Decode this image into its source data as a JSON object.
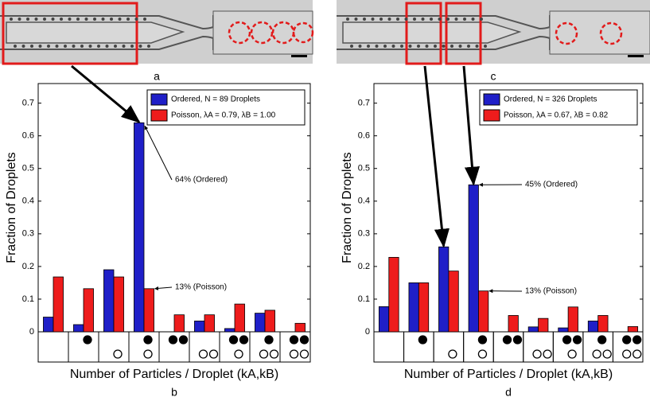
{
  "chart_data": [
    {
      "type": "bar",
      "image_label": "a",
      "panel_label": "b",
      "y_label": "Fraction of Droplets",
      "x_label": "Number of Particles / Droplet (kA,kB)",
      "categories": [
        null,
        null,
        null,
        null,
        null,
        null,
        null,
        null,
        null
      ],
      "series": [
        {
          "name": "Ordered, N = 89 Droplets",
          "color": "#1f1fc8",
          "values": [
            0.045,
            0.022,
            0.19,
            0.64,
            0,
            0.033,
            0.01,
            0.057,
            0
          ]
        },
        {
          "name": "Poisson, λA = 0.79, λB = 1.00",
          "color": "#ee1c1c",
          "values": [
            0.168,
            0.132,
            0.168,
            0.132,
            0.052,
            0.052,
            0.085,
            0.066,
            0.026
          ]
        }
      ],
      "annotations": [
        "64% (Ordered)",
        "13% (Poisson)"
      ],
      "ylim": [
        0,
        0.76
      ],
      "yticks": [
        0,
        0.1,
        0.2,
        0.3,
        0.4,
        0.5,
        0.6,
        0.7
      ],
      "legend": "upper right"
    },
    {
      "type": "bar",
      "image_label": "c",
      "panel_label": "d",
      "y_label": "Fraction of Droplets",
      "x_label": "Number of Particles / Droplet (kA,kB)",
      "categories": [
        null,
        null,
        null,
        null,
        null,
        null,
        null,
        null,
        null
      ],
      "series": [
        {
          "name": "Ordered, N = 326 Droplets",
          "color": "#1f1fc8",
          "values": [
            0.077,
            0.15,
            0.26,
            0.45,
            0,
            0.015,
            0.012,
            0.033,
            0
          ]
        },
        {
          "name": "Poisson, λA = 0.67, λB = 0.82",
          "color": "#ee1c1c",
          "values": [
            0.228,
            0.15,
            0.186,
            0.125,
            0.05,
            0.041,
            0.076,
            0.05,
            0.016
          ]
        }
      ],
      "annotations": [
        "45% (Ordered)",
        "13% (Poisson)"
      ],
      "ylim": [
        0,
        0.76
      ],
      "yticks": [
        0,
        0.1,
        0.2,
        0.3,
        0.4,
        0.5,
        0.6,
        0.7
      ],
      "legend": "upper right"
    }
  ]
}
